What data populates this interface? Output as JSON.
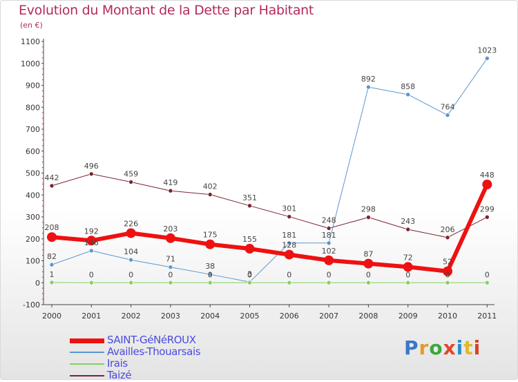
{
  "title": "Evolution du Montant de la Dette par Habitant",
  "subtitle": "(en €)",
  "logo": {
    "text": "Proxiti",
    "colors": [
      "#3a78c8",
      "#e39b2a",
      "#3aa83a",
      "#e3452a",
      "#2a8fc8",
      "#e3b82a",
      "#d8402a"
    ]
  },
  "chart_data": {
    "type": "line",
    "x": [
      "2000",
      "2001",
      "2002",
      "2003",
      "2004",
      "2005",
      "2006",
      "2007",
      "2008",
      "2009",
      "2010",
      "2011"
    ],
    "ylim": [
      -100,
      1100
    ],
    "yticks": [
      "-100",
      "0",
      "100",
      "200",
      "300",
      "400",
      "500",
      "600",
      "700",
      "800",
      "900",
      "1000",
      "1100"
    ],
    "grid": false,
    "legend_position": "bottom-left",
    "series": [
      {
        "name": "SAINT-GéNéROUX",
        "color": "#ee1111",
        "stroke": 6,
        "marker": 7,
        "values": [
          208,
          192,
          226,
          203,
          175,
          155,
          128,
          102,
          87,
          72,
          52,
          448
        ],
        "labels": [
          "208",
          "192",
          "226",
          "203",
          "175",
          "155",
          "128",
          "102",
          "87",
          "72",
          "52",
          "448"
        ]
      },
      {
        "name": "Availles-Thouarsais",
        "color": "#5a96d0",
        "stroke": 1,
        "marker": 3,
        "values": [
          82,
          146,
          104,
          71,
          38,
          3,
          181,
          181,
          892,
          858,
          764,
          1023
        ],
        "labels": [
          "82",
          "146",
          "104",
          "71",
          "38",
          "3",
          "181",
          "181",
          "892",
          "858",
          "764",
          "1023"
        ]
      },
      {
        "name": "Irais",
        "color": "#88d060",
        "stroke": 1,
        "marker": 3,
        "values": [
          1,
          0,
          0,
          0,
          0,
          0,
          0,
          0,
          0,
          0,
          0,
          0
        ],
        "labels": [
          "1",
          "0",
          "0",
          "0",
          "0",
          "0",
          "0",
          "0",
          "0",
          "0",
          "0",
          "0"
        ]
      },
      {
        "name": "Taizé",
        "color": "#7a2430",
        "stroke": 1,
        "marker": 3,
        "values": [
          442,
          496,
          459,
          419,
          402,
          351,
          301,
          248,
          298,
          243,
          206,
          299
        ],
        "labels": [
          "442",
          "496",
          "459",
          "419",
          "402",
          "351",
          "301",
          "248",
          "298",
          "243",
          "206",
          "299"
        ]
      }
    ]
  }
}
